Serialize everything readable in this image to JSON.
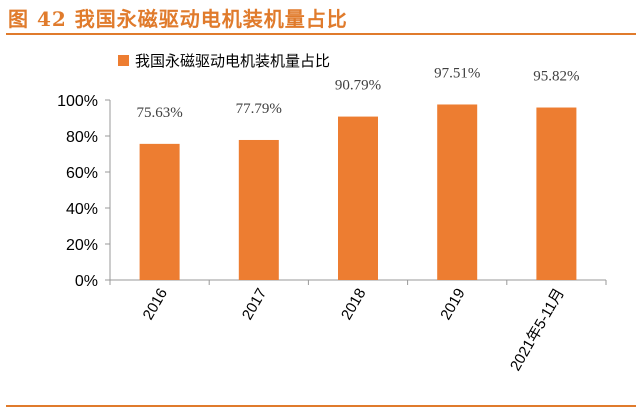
{
  "figure": {
    "title": "图 42 我国永磁驱动电机装机量占比"
  },
  "chart_data": {
    "type": "bar",
    "categories": [
      "2016",
      "2017",
      "2018",
      "2019",
      "2021年5-11月"
    ],
    "series": [
      {
        "name": "我国永磁驱动电机装机量占比",
        "values": [
          75.63,
          77.79,
          90.79,
          97.51,
          95.82
        ],
        "value_labels": [
          "75.63%",
          "77.79%",
          "90.79%",
          "97.51%",
          "95.82%"
        ]
      }
    ],
    "y_ticks": [
      "0%",
      "20%",
      "40%",
      "60%",
      "80%",
      "100%"
    ],
    "ylim": [
      0,
      100
    ],
    "legend_position": "top-left",
    "grid": false,
    "bar_color": "#ed7d31",
    "accent_color": "#e07b2c"
  }
}
